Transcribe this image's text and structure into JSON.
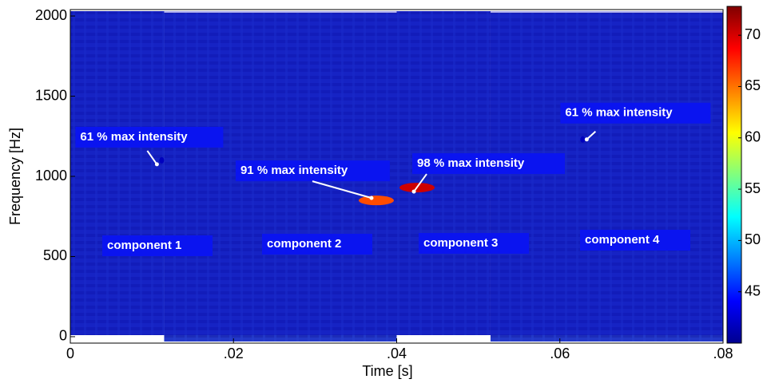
{
  "chart_data": {
    "type": "spectrogram",
    "xlabel": "Time [s]",
    "ylabel": "Frequency [Hz]",
    "xlim": [
      0,
      0.08
    ],
    "xticks": [
      0,
      {
        "value": 0.02,
        "label": ".02"
      },
      {
        "value": 0.04,
        "label": ".04"
      },
      {
        "value": 0.06,
        "label": ".06"
      },
      {
        "value": 0.08,
        "label": ".08"
      }
    ],
    "ylim": [
      -40,
      2040
    ],
    "yticks": [
      0,
      500,
      1000,
      1500,
      2000
    ],
    "clim": [
      40,
      72.5
    ],
    "cticks": [
      45,
      50,
      55,
      60,
      65,
      70
    ],
    "components": [
      "component 1",
      "component 2",
      "component 3",
      "component 4"
    ],
    "component_bounds": [
      0,
      0.0115,
      0.04,
      0.0515,
      0.08
    ],
    "background_value": 42,
    "hotspots": [
      {
        "x": 0.0112,
        "y": 1100,
        "value": 42,
        "label": "61 % max intensity"
      },
      {
        "x": 0.0375,
        "y": 850,
        "value": 66,
        "label": "91 % max intensity"
      },
      {
        "x": 0.0425,
        "y": 930,
        "value": 70,
        "label": "98 % max intensity"
      },
      {
        "x": 0.0628,
        "y": 1230,
        "value": 42,
        "label": "61 % max intensity"
      }
    ]
  }
}
